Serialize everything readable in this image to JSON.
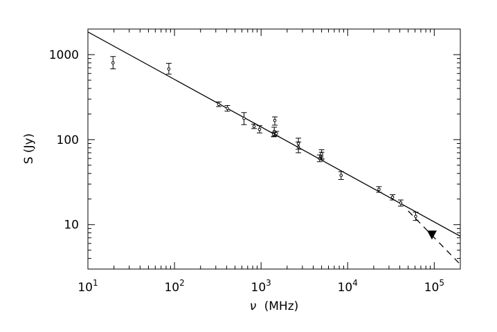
{
  "chart_data": {
    "type": "scatter",
    "xlabel_symbol": "ν",
    "xlabel_unit": "(MHz)",
    "ylabel": "S (Jy)",
    "xscale": "log",
    "yscale": "log",
    "xlim": [
      10,
      200000
    ],
    "ylim": [
      3,
      2000
    ],
    "x_ticks": [
      {
        "value": 10,
        "base": "10",
        "exp": "1"
      },
      {
        "value": 100,
        "base": "10",
        "exp": "2"
      },
      {
        "value": 1000,
        "base": "10",
        "exp": "3"
      },
      {
        "value": 10000,
        "base": "10",
        "exp": "4"
      },
      {
        "value": 100000,
        "base": "10",
        "exp": "5"
      }
    ],
    "y_ticks": [
      {
        "value": 10,
        "label": "10"
      },
      {
        "value": 100,
        "label": "100"
      },
      {
        "value": 1000,
        "label": "1000"
      }
    ],
    "measurements": [
      {
        "x": 19.5,
        "y": 800,
        "ylo": 680,
        "yhi": 950
      },
      {
        "x": 86,
        "y": 680,
        "ylo": 590,
        "yhi": 790
      },
      {
        "x": 325,
        "y": 260,
        "ylo": 245,
        "yhi": 278
      },
      {
        "x": 408,
        "y": 233,
        "ylo": 216,
        "yhi": 252
      },
      {
        "x": 635,
        "y": 178,
        "ylo": 150,
        "yhi": 208
      },
      {
        "x": 830,
        "y": 143,
        "ylo": 135,
        "yhi": 152
      },
      {
        "x": 960,
        "y": 132,
        "ylo": 120,
        "yhi": 146
      },
      {
        "x": 1400,
        "y": 115,
        "ylo": 108,
        "yhi": 122
      },
      {
        "x": 1420,
        "y": 125,
        "ylo": 110,
        "yhi": 140
      },
      {
        "x": 1440,
        "y": 168,
        "ylo": 148,
        "yhi": 185
      },
      {
        "x": 1500,
        "y": 118,
        "ylo": 110,
        "yhi": 125
      },
      {
        "x": 2700,
        "y": 82,
        "ylo": 70,
        "yhi": 94
      },
      {
        "x": 2700,
        "y": 90,
        "ylo": 77,
        "yhi": 104
      },
      {
        "x": 4750,
        "y": 60,
        "ylo": 55,
        "yhi": 66
      },
      {
        "x": 5000,
        "y": 64,
        "ylo": 58,
        "yhi": 71
      },
      {
        "x": 5000,
        "y": 68,
        "ylo": 60,
        "yhi": 76
      },
      {
        "x": 8400,
        "y": 38,
        "ylo": 34,
        "yhi": 42
      },
      {
        "x": 23000,
        "y": 26,
        "ylo": 24,
        "yhi": 28
      },
      {
        "x": 33000,
        "y": 21,
        "ylo": 19.5,
        "yhi": 22.5
      },
      {
        "x": 41000,
        "y": 18,
        "ylo": 16.5,
        "yhi": 19.5
      },
      {
        "x": 61000,
        "y": 12.5,
        "ylo": 11.2,
        "yhi": 14
      }
    ],
    "upper_limit": {
      "x": 94000,
      "y": 7.6
    },
    "fit_line": {
      "points": [
        [
          10,
          1850
        ],
        [
          200000,
          7.3
        ]
      ]
    },
    "extrapolation": {
      "points": [
        [
          50000,
          14.5
        ],
        [
          200000,
          3.4
        ]
      ]
    }
  }
}
